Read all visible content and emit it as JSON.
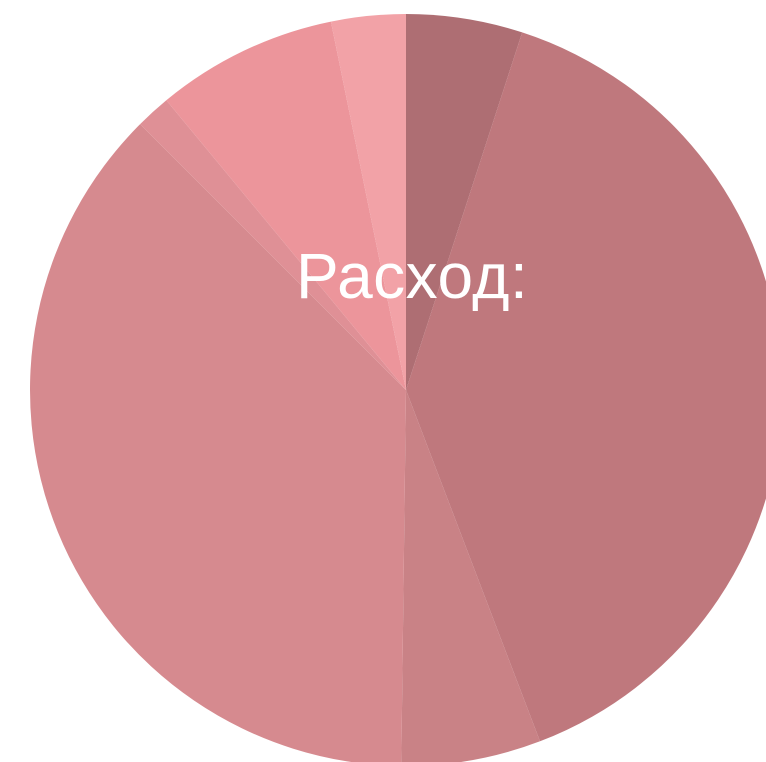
{
  "chart_data": {
    "type": "pie",
    "title": "Расход:",
    "slices": [
      {
        "value": 5.0,
        "color": "#ae6e73"
      },
      {
        "value": 39.2,
        "color": "#bf787d"
      },
      {
        "value": 6.0,
        "color": "#c98286"
      },
      {
        "value": 37.3,
        "color": "#d68a8f"
      },
      {
        "value": 1.5,
        "color": "#df9096"
      },
      {
        "value": 7.8,
        "color": "#ec959b"
      },
      {
        "value": 3.2,
        "color": "#f2a2a7"
      }
    ],
    "start_angle_deg": 0,
    "direction": "clockwise"
  }
}
